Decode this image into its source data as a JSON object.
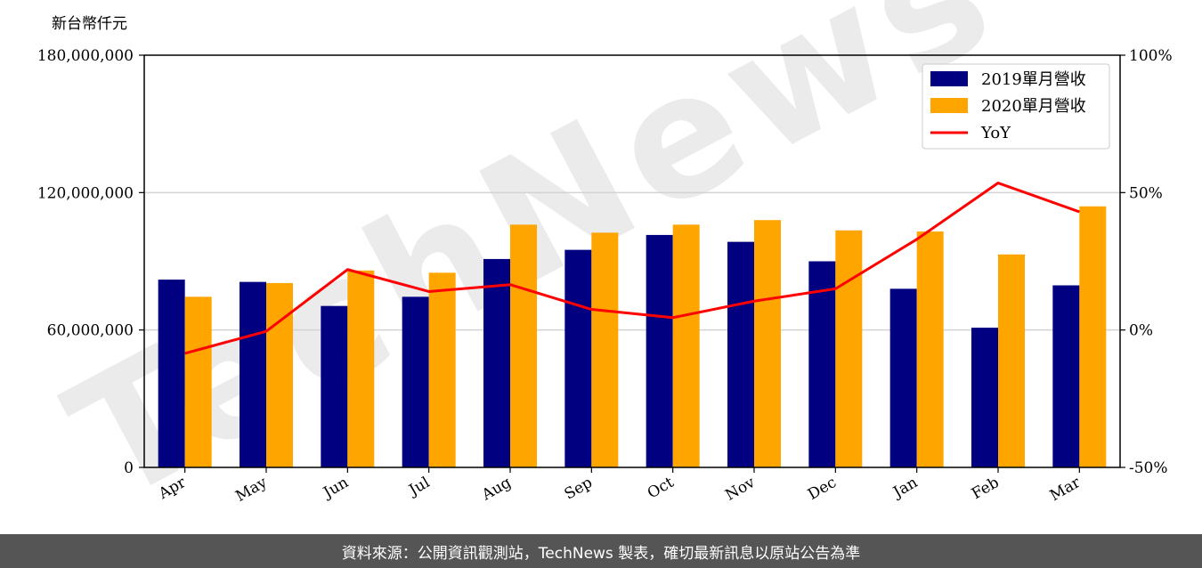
{
  "chart_data": {
    "type": "bar",
    "unit_label": "新台幣仟元",
    "categories": [
      "Apr",
      "May",
      "Jun",
      "Jul",
      "Aug",
      "Sep",
      "Oct",
      "Nov",
      "Dec",
      "Jan",
      "Feb",
      "Mar"
    ],
    "series": [
      {
        "name": "2019單月營收",
        "type": "bar",
        "axis": "left",
        "color": "#000080",
        "values": [
          82000000,
          81000000,
          70500000,
          74500000,
          91000000,
          95000000,
          101500000,
          98500000,
          90000000,
          78000000,
          61000000,
          79500000
        ]
      },
      {
        "name": "2020單月營收",
        "type": "bar",
        "axis": "left",
        "color": "#FFA500",
        "values": [
          74500000,
          80500000,
          86000000,
          85000000,
          106000000,
          102500000,
          106000000,
          108000000,
          103500000,
          103000000,
          93000000,
          114000000
        ]
      },
      {
        "name": "YoY",
        "type": "line",
        "axis": "right",
        "color": "#FF0000",
        "values": [
          -0.085,
          -0.005,
          0.22,
          0.14,
          0.165,
          0.075,
          0.045,
          0.105,
          0.15,
          0.33,
          0.535,
          0.43
        ]
      }
    ],
    "y_left": {
      "ylim": [
        0,
        180000000
      ],
      "ticks": [
        0,
        60000000,
        120000000,
        180000000
      ],
      "tick_labels": [
        "0",
        "60,000,000",
        "120,000,000",
        "180,000,000"
      ]
    },
    "y_right": {
      "ylim": [
        -0.5,
        1.0
      ],
      "ticks": [
        -0.5,
        0,
        0.5,
        1.0
      ],
      "tick_labels": [
        "-50%",
        "0%",
        "50%",
        "100%"
      ]
    },
    "grid": "horizontal",
    "legend_position": "top-right",
    "watermark": "TechNews"
  },
  "footer": {
    "text": "資料來源：公開資訊觀測站，TechNews 製表，確切最新訊息以原站公告為準"
  }
}
